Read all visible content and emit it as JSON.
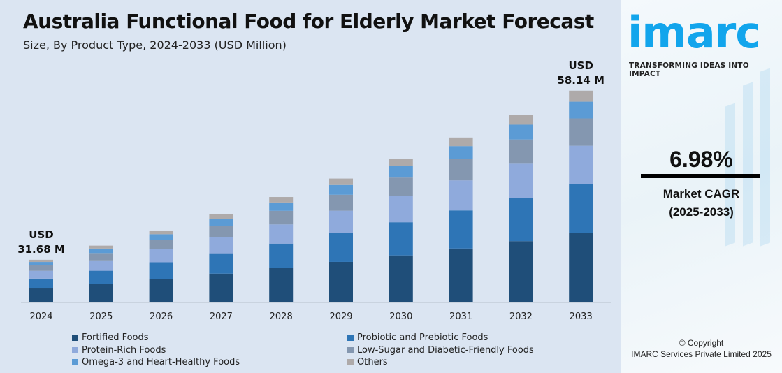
{
  "title": "Australia Functional Food for Elderly Market Forecast",
  "subtitle": "Size, By Product Type, 2024-2033 (USD Million)",
  "chart_data": {
    "type": "bar",
    "stacked": true,
    "title": "Australia Functional Food for Elderly Market Forecast",
    "subtitle": "Size, By Product Type, 2024-2033 (USD Million)",
    "categories": [
      "2024",
      "2025",
      "2026",
      "2027",
      "2028",
      "2029",
      "2030",
      "2031",
      "2032",
      "2033"
    ],
    "totals": [
      31.68,
      33.89,
      36.26,
      38.79,
      41.5,
      44.39,
      47.49,
      50.81,
      54.35,
      58.14
    ],
    "series": [
      {
        "name": "Fortified Foods",
        "color": "#1f4e79",
        "values": [
          10.36,
          11.08,
          11.86,
          12.68,
          13.57,
          14.52,
          15.53,
          16.61,
          17.77,
          19.01
        ]
      },
      {
        "name": "Probiotic and Prebiotic Foods",
        "color": "#2e75b6",
        "values": [
          7.32,
          7.83,
          8.38,
          8.96,
          9.59,
          10.25,
          10.97,
          11.74,
          12.55,
          13.43
        ]
      },
      {
        "name": "Protein-Rich Foods",
        "color": "#8faadc",
        "values": [
          5.77,
          6.17,
          6.6,
          7.06,
          7.55,
          8.08,
          8.64,
          9.25,
          9.89,
          10.58
        ]
      },
      {
        "name": "Low-Sugar and Diabetic-Friendly Foods",
        "color": "#8497b0",
        "values": [
          4.09,
          4.37,
          4.68,
          5.0,
          5.35,
          5.73,
          6.13,
          6.55,
          7.01,
          7.5
        ]
      },
      {
        "name": "Omega-3 and Heart-Healthy Foods",
        "color": "#5b9bd5",
        "values": [
          2.5,
          2.68,
          2.86,
          3.06,
          3.28,
          3.51,
          3.75,
          4.01,
          4.29,
          4.59
        ]
      },
      {
        "name": "Others",
        "color": "#aeaaaa",
        "values": [
          1.64,
          1.76,
          1.88,
          2.03,
          2.16,
          2.3,
          2.47,
          2.65,
          2.84,
          3.03
        ]
      }
    ],
    "annotations": [
      {
        "category": "2024",
        "line1": "USD",
        "line2": "31.68 M"
      },
      {
        "category": "2033",
        "line1": "USD",
        "line2": "58.14 M"
      }
    ],
    "grid": false,
    "legend_position": "bottom"
  },
  "sidebar": {
    "logo": "imarc",
    "tagline": "TRANSFORMING IDEAS INTO IMPACT",
    "cagr_value": "6.98%",
    "cagr_label": "Market CAGR",
    "cagr_period": "(2025-2033)",
    "copyright": "© Copyright",
    "company": "IMARC Services Private Limited 2025",
    "brand_color": "#12a5ec"
  }
}
